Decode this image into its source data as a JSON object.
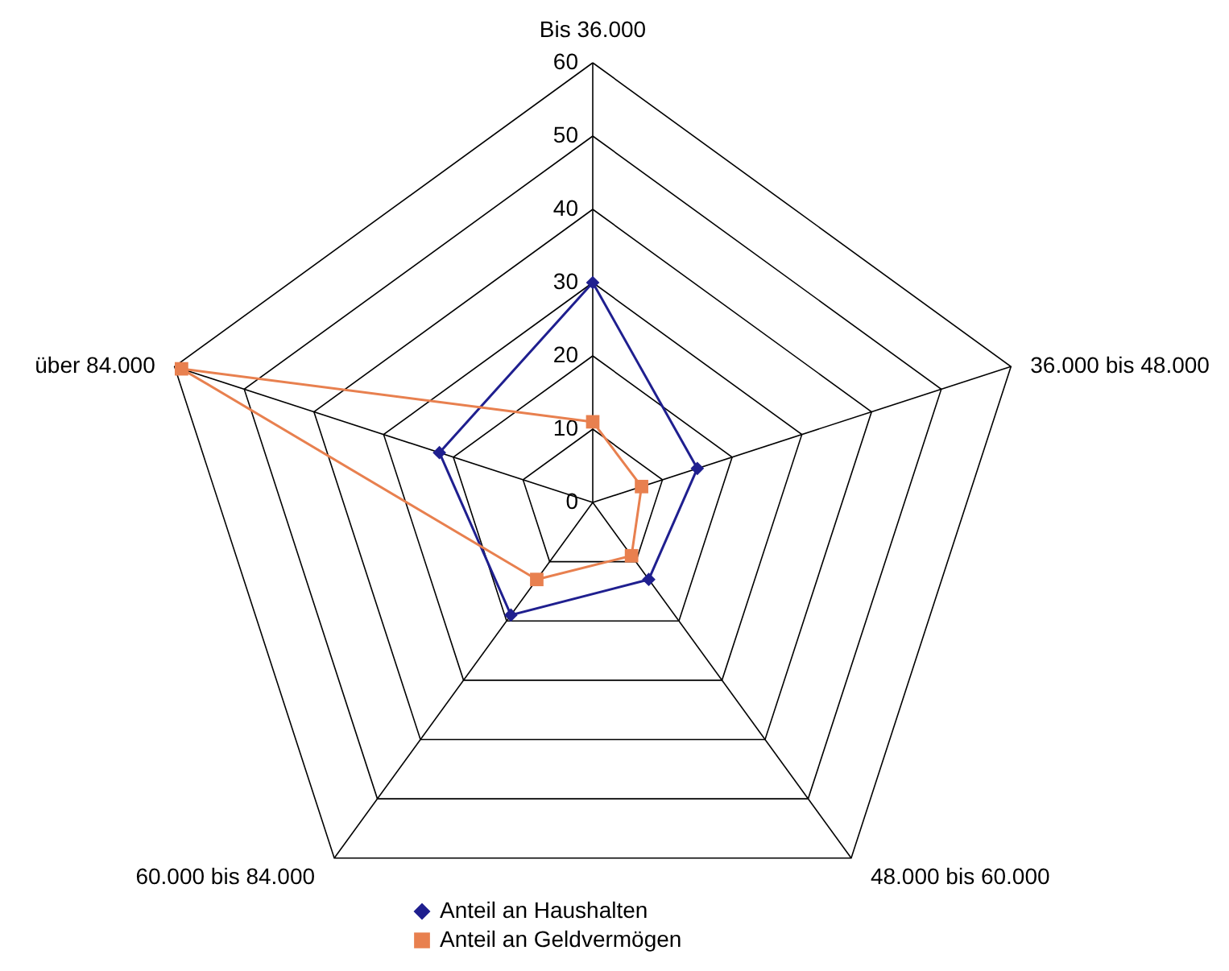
{
  "chart_data": {
    "type": "radar",
    "categories": [
      "Bis 36.000",
      "36.000 bis 48.000",
      "48.000 bis 60.000",
      "60.000 bis 84.000",
      "über 84.000"
    ],
    "series": [
      {
        "name": "Anteil an Haushalten",
        "color": "#1f1f8f",
        "marker": "diamond",
        "values": [
          30,
          15,
          13,
          19,
          22
        ]
      },
      {
        "name": "Anteil an Geldvermögen",
        "color": "#e8804f",
        "marker": "square",
        "values": [
          11,
          7,
          9,
          13,
          59
        ]
      }
    ],
    "ylim": [
      0,
      60
    ],
    "yticks": [
      0,
      10,
      20,
      30,
      40,
      50,
      60
    ],
    "grid": true,
    "legend": "bottom"
  }
}
